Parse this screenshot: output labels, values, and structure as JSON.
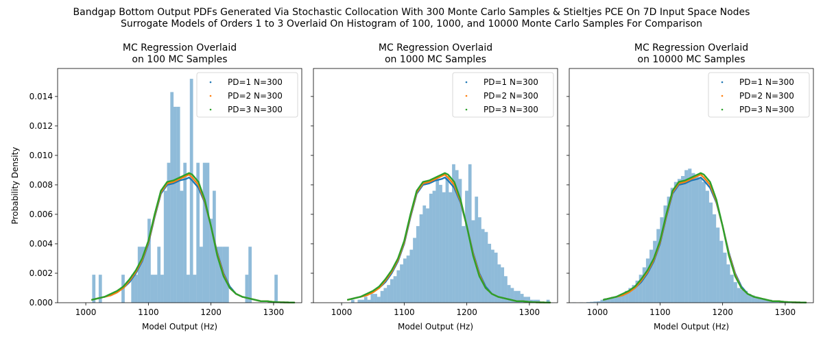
{
  "figure": {
    "suptitle_line1": "Bandgap Bottom Output PDFs Generated Via Stochastic Collocation With 300 Monte Carlo Samples & Stieltjes PCE On 7D Input Space Nodes",
    "suptitle_line2": "Surrogate Models of Orders 1 to 3 Overlaid On Histogram of 100, 1000, and 10000 Monte Carlo Samples For Comparison"
  },
  "colors": {
    "histogram": "#1f77b4",
    "series": [
      "#1f77b4",
      "#ff7f0e",
      "#2ca02c"
    ]
  },
  "chart_data": [
    {
      "type": "histogram+line",
      "title_line1": "MC Regression Overlaid",
      "title_line2": "on 100 MC Samples",
      "xlabel": "Model Output (Hz)",
      "ylabel": "Probability Density",
      "xlim": [
        955,
        1345
      ],
      "ylim": [
        0,
        0.0159
      ],
      "xticks": [
        1000,
        1100,
        1200,
        1300
      ],
      "yticks": [
        0.0,
        0.002,
        0.004,
        0.006,
        0.008,
        0.01,
        0.012,
        0.014
      ],
      "ytick_labels": [
        "0.000",
        "0.002",
        "0.004",
        "0.006",
        "0.008",
        "0.010",
        "0.012",
        "0.014"
      ],
      "legend_position": "upper right",
      "histogram": {
        "bin_start": 1005,
        "bin_width": 5.2,
        "counts": [
          0,
          0.0019,
          0,
          0.0019,
          0,
          0,
          0,
          0,
          0,
          0,
          0.0019,
          0,
          0,
          0.0019,
          0.0019,
          0.0038,
          0.0038,
          0.0038,
          0.0057,
          0.0019,
          0.0019,
          0.0038,
          0.0019,
          0.0076,
          0.0095,
          0.0143,
          0.0133,
          0.0133,
          0.0076,
          0.0095,
          0.0019,
          0.0152,
          0.0019,
          0.0095,
          0.0038,
          0.0095,
          0.0095,
          0.0057,
          0.0076,
          0.0038,
          0.0038,
          0.0038,
          0.0038,
          0,
          0,
          0,
          0,
          0,
          0.0019,
          0.0038,
          0,
          0,
          0,
          0,
          0,
          0,
          0,
          0.0019,
          0,
          0,
          0,
          0,
          0,
          0,
          0
        ]
      },
      "series": [
        {
          "name": "PD=1 N=300",
          "x": [
            1010,
            1020,
            1030,
            1040,
            1050,
            1060,
            1070,
            1080,
            1090,
            1100,
            1110,
            1120,
            1130,
            1140,
            1150,
            1160,
            1165,
            1170,
            1180,
            1190,
            1200,
            1210,
            1220,
            1230,
            1240,
            1250,
            1260,
            1270,
            1280,
            1290,
            1300,
            1310,
            1320,
            1333
          ],
          "y": [
            0.0002,
            0.0003,
            0.0004,
            0.0005,
            0.0007,
            0.001,
            0.0014,
            0.002,
            0.0028,
            0.004,
            0.0058,
            0.0074,
            0.008,
            0.0081,
            0.0083,
            0.0084,
            0.0085,
            0.0083,
            0.0078,
            0.0068,
            0.0052,
            0.0034,
            0.002,
            0.0011,
            0.0006,
            0.0004,
            0.0003,
            0.0002,
            0.0001,
            0.0001,
            5e-05,
            3e-05,
            2e-05,
            1e-05
          ]
        },
        {
          "name": "PD=2 N=300",
          "x": [
            1010,
            1020,
            1030,
            1040,
            1050,
            1060,
            1070,
            1080,
            1090,
            1100,
            1110,
            1120,
            1130,
            1140,
            1150,
            1160,
            1165,
            1170,
            1180,
            1190,
            1200,
            1210,
            1220,
            1230,
            1240,
            1250,
            1260,
            1270,
            1280,
            1290,
            1300,
            1310,
            1320,
            1333
          ],
          "y": [
            0.0002,
            0.0003,
            0.0004,
            0.0005,
            0.0007,
            0.001,
            0.0015,
            0.0021,
            0.0029,
            0.0041,
            0.0059,
            0.0075,
            0.0081,
            0.0082,
            0.0084,
            0.0086,
            0.0087,
            0.0085,
            0.008,
            0.0069,
            0.0052,
            0.0033,
            0.0019,
            0.001,
            0.0006,
            0.0004,
            0.0003,
            0.0002,
            0.0001,
            0.0001,
            5e-05,
            3e-05,
            2e-05,
            1e-05
          ]
        },
        {
          "name": "PD=3 N=300",
          "x": [
            1010,
            1020,
            1030,
            1040,
            1050,
            1060,
            1070,
            1080,
            1090,
            1100,
            1110,
            1120,
            1130,
            1140,
            1150,
            1160,
            1165,
            1170,
            1180,
            1190,
            1200,
            1210,
            1220,
            1230,
            1240,
            1250,
            1260,
            1270,
            1280,
            1290,
            1300,
            1310,
            1320,
            1333
          ],
          "y": [
            0.0002,
            0.0003,
            0.0004,
            0.0006,
            0.0008,
            0.0011,
            0.0016,
            0.0022,
            0.003,
            0.0042,
            0.006,
            0.0076,
            0.0082,
            0.0083,
            0.0085,
            0.0087,
            0.0088,
            0.0087,
            0.0082,
            0.007,
            0.0052,
            0.0032,
            0.0018,
            0.001,
            0.0006,
            0.0004,
            0.0003,
            0.0002,
            0.0001,
            0.0001,
            5e-05,
            3e-05,
            2e-05,
            1e-05
          ]
        }
      ]
    },
    {
      "type": "histogram+line",
      "title_line1": "MC Regression Overlaid",
      "title_line2": "on 1000 MC Samples",
      "xlabel": "Model Output (Hz)",
      "ylabel": "",
      "xlim": [
        955,
        1345
      ],
      "ylim": [
        0,
        0.0159
      ],
      "xticks": [
        1000,
        1100,
        1200,
        1300
      ],
      "yticks": [
        0.0,
        0.002,
        0.004,
        0.006,
        0.008,
        0.01,
        0.012,
        0.014
      ],
      "ytick_labels": [
        "",
        "",
        "",
        "",
        "",
        "",
        "",
        ""
      ],
      "legend_position": "upper right",
      "histogram": {
        "bin_start": 1010,
        "bin_width": 5.2,
        "counts": [
          0,
          0.0002,
          0,
          0.0002,
          0.0002,
          0.0004,
          0.0002,
          0.0006,
          0.0006,
          0.0004,
          0.0008,
          0.001,
          0.0012,
          0.0016,
          0.0018,
          0.0022,
          0.0026,
          0.003,
          0.0032,
          0.0036,
          0.0044,
          0.0052,
          0.006,
          0.0066,
          0.0064,
          0.0074,
          0.0076,
          0.0084,
          0.008,
          0.0075,
          0.0086,
          0.0075,
          0.0094,
          0.009,
          0.0084,
          0.0052,
          0.0076,
          0.0094,
          0.0056,
          0.0072,
          0.0058,
          0.005,
          0.0048,
          0.004,
          0.0036,
          0.0034,
          0.0026,
          0.0024,
          0.0018,
          0.0012,
          0.001,
          0.0008,
          0.0008,
          0.0006,
          0.0004,
          0.0004,
          0.0002,
          0.0002,
          0.0002,
          0,
          0,
          0.0002,
          0,
          0,
          0
        ]
      },
      "series": [
        {
          "name": "PD=1 N=300",
          "x": [
            1010,
            1020,
            1030,
            1040,
            1050,
            1060,
            1070,
            1080,
            1090,
            1100,
            1110,
            1120,
            1130,
            1140,
            1150,
            1160,
            1165,
            1170,
            1180,
            1190,
            1200,
            1210,
            1220,
            1230,
            1240,
            1250,
            1260,
            1270,
            1280,
            1290,
            1300,
            1310,
            1320,
            1333
          ],
          "y": [
            0.0002,
            0.0003,
            0.0004,
            0.0005,
            0.0007,
            0.001,
            0.0014,
            0.002,
            0.0028,
            0.004,
            0.0058,
            0.0074,
            0.008,
            0.0081,
            0.0083,
            0.0084,
            0.0085,
            0.0083,
            0.0078,
            0.0068,
            0.0052,
            0.0034,
            0.002,
            0.0011,
            0.0006,
            0.0004,
            0.0003,
            0.0002,
            0.0001,
            0.0001,
            5e-05,
            3e-05,
            2e-05,
            1e-05
          ]
        },
        {
          "name": "PD=2 N=300",
          "x": [
            1010,
            1020,
            1030,
            1040,
            1050,
            1060,
            1070,
            1080,
            1090,
            1100,
            1110,
            1120,
            1130,
            1140,
            1150,
            1160,
            1165,
            1170,
            1180,
            1190,
            1200,
            1210,
            1220,
            1230,
            1240,
            1250,
            1260,
            1270,
            1280,
            1290,
            1300,
            1310,
            1320,
            1333
          ],
          "y": [
            0.0002,
            0.0003,
            0.0004,
            0.0005,
            0.0007,
            0.001,
            0.0015,
            0.0021,
            0.0029,
            0.0041,
            0.0059,
            0.0075,
            0.0081,
            0.0082,
            0.0084,
            0.0086,
            0.0087,
            0.0085,
            0.008,
            0.0069,
            0.0052,
            0.0033,
            0.0019,
            0.001,
            0.0006,
            0.0004,
            0.0003,
            0.0002,
            0.0001,
            0.0001,
            5e-05,
            3e-05,
            2e-05,
            1e-05
          ]
        },
        {
          "name": "PD=3 N=300",
          "x": [
            1010,
            1020,
            1030,
            1040,
            1050,
            1060,
            1070,
            1080,
            1090,
            1100,
            1110,
            1120,
            1130,
            1140,
            1150,
            1160,
            1165,
            1170,
            1180,
            1190,
            1200,
            1210,
            1220,
            1230,
            1240,
            1250,
            1260,
            1270,
            1280,
            1290,
            1300,
            1310,
            1320,
            1333
          ],
          "y": [
            0.0002,
            0.0003,
            0.0004,
            0.0006,
            0.0008,
            0.0011,
            0.0016,
            0.0022,
            0.003,
            0.0042,
            0.006,
            0.0076,
            0.0082,
            0.0083,
            0.0085,
            0.0087,
            0.0088,
            0.0087,
            0.0082,
            0.007,
            0.0052,
            0.0032,
            0.0018,
            0.001,
            0.0006,
            0.0004,
            0.0003,
            0.0002,
            0.0001,
            0.0001,
            5e-05,
            3e-05,
            2e-05,
            1e-05
          ]
        }
      ]
    },
    {
      "type": "histogram+line",
      "title_line1": "MC Regression Overlaid",
      "title_line2": "on 10000 MC Samples",
      "xlabel": "Model Output (Hz)",
      "ylabel": "",
      "xlim": [
        955,
        1345
      ],
      "ylim": [
        0,
        0.0159
      ],
      "xticks": [
        1000,
        1100,
        1200,
        1300
      ],
      "yticks": [
        0.0,
        0.002,
        0.004,
        0.006,
        0.008,
        0.01,
        0.012,
        0.014
      ],
      "ytick_labels": [
        "",
        "",
        "",
        "",
        "",
        "",
        "",
        ""
      ],
      "legend_position": "upper right",
      "histogram": {
        "bin_start": 960,
        "bin_width": 5.6,
        "counts": [
          2e-05,
          0,
          2e-05,
          0,
          4e-05,
          6e-05,
          8e-05,
          0.0001,
          0.0002,
          0.0003,
          0.0003,
          0.0004,
          0.0004,
          0.0005,
          0.0006,
          0.0008,
          0.001,
          0.0012,
          0.0015,
          0.0019,
          0.0024,
          0.003,
          0.0036,
          0.0042,
          0.005,
          0.0058,
          0.0066,
          0.0072,
          0.0078,
          0.0082,
          0.0084,
          0.0086,
          0.009,
          0.0091,
          0.0088,
          0.0087,
          0.0085,
          0.0082,
          0.0076,
          0.0068,
          0.006,
          0.0051,
          0.0042,
          0.0034,
          0.0026,
          0.0019,
          0.0014,
          0.001,
          0.0009,
          0.0008,
          0.0006,
          0.0005,
          0.0004,
          0.0003,
          0.0003,
          0.0002,
          0.0002,
          0.0001,
          0.0001,
          0.0001,
          5e-05,
          4e-05,
          2e-05,
          2e-05,
          1e-05,
          1e-05,
          1e-05
        ]
      },
      "series": [
        {
          "name": "PD=1 N=300",
          "x": [
            1010,
            1020,
            1030,
            1040,
            1050,
            1060,
            1070,
            1080,
            1090,
            1100,
            1110,
            1120,
            1130,
            1140,
            1150,
            1160,
            1165,
            1170,
            1180,
            1190,
            1200,
            1210,
            1220,
            1230,
            1240,
            1250,
            1260,
            1270,
            1280,
            1290,
            1300,
            1310,
            1320,
            1333
          ],
          "y": [
            0.0002,
            0.0003,
            0.0004,
            0.0005,
            0.0007,
            0.001,
            0.0014,
            0.002,
            0.0028,
            0.004,
            0.0058,
            0.0074,
            0.008,
            0.0081,
            0.0083,
            0.0084,
            0.0085,
            0.0083,
            0.0078,
            0.0068,
            0.0052,
            0.0034,
            0.002,
            0.0011,
            0.0006,
            0.0004,
            0.0003,
            0.0002,
            0.0001,
            0.0001,
            5e-05,
            3e-05,
            2e-05,
            1e-05
          ]
        },
        {
          "name": "PD=2 N=300",
          "x": [
            1010,
            1020,
            1030,
            1040,
            1050,
            1060,
            1070,
            1080,
            1090,
            1100,
            1110,
            1120,
            1130,
            1140,
            1150,
            1160,
            1165,
            1170,
            1180,
            1190,
            1200,
            1210,
            1220,
            1230,
            1240,
            1250,
            1260,
            1270,
            1280,
            1290,
            1300,
            1310,
            1320,
            1333
          ],
          "y": [
            0.0002,
            0.0003,
            0.0004,
            0.0005,
            0.0007,
            0.001,
            0.0015,
            0.0021,
            0.0029,
            0.0041,
            0.0059,
            0.0075,
            0.0081,
            0.0082,
            0.0084,
            0.0086,
            0.0087,
            0.0085,
            0.008,
            0.0069,
            0.0052,
            0.0033,
            0.0019,
            0.001,
            0.0006,
            0.0004,
            0.0003,
            0.0002,
            0.0001,
            0.0001,
            5e-05,
            3e-05,
            2e-05,
            1e-05
          ]
        },
        {
          "name": "PD=3 N=300",
          "x": [
            1010,
            1020,
            1030,
            1040,
            1050,
            1060,
            1070,
            1080,
            1090,
            1100,
            1110,
            1120,
            1130,
            1140,
            1150,
            1160,
            1165,
            1170,
            1180,
            1190,
            1200,
            1210,
            1220,
            1230,
            1240,
            1250,
            1260,
            1270,
            1280,
            1290,
            1300,
            1310,
            1320,
            1333
          ],
          "y": [
            0.0002,
            0.0003,
            0.0004,
            0.0006,
            0.0008,
            0.0011,
            0.0016,
            0.0022,
            0.003,
            0.0042,
            0.006,
            0.0076,
            0.0082,
            0.0083,
            0.0085,
            0.0087,
            0.0088,
            0.0087,
            0.0082,
            0.007,
            0.0052,
            0.0032,
            0.0018,
            0.001,
            0.0006,
            0.0004,
            0.0003,
            0.0002,
            0.0001,
            0.0001,
            5e-05,
            3e-05,
            2e-05,
            1e-05
          ]
        }
      ]
    }
  ]
}
